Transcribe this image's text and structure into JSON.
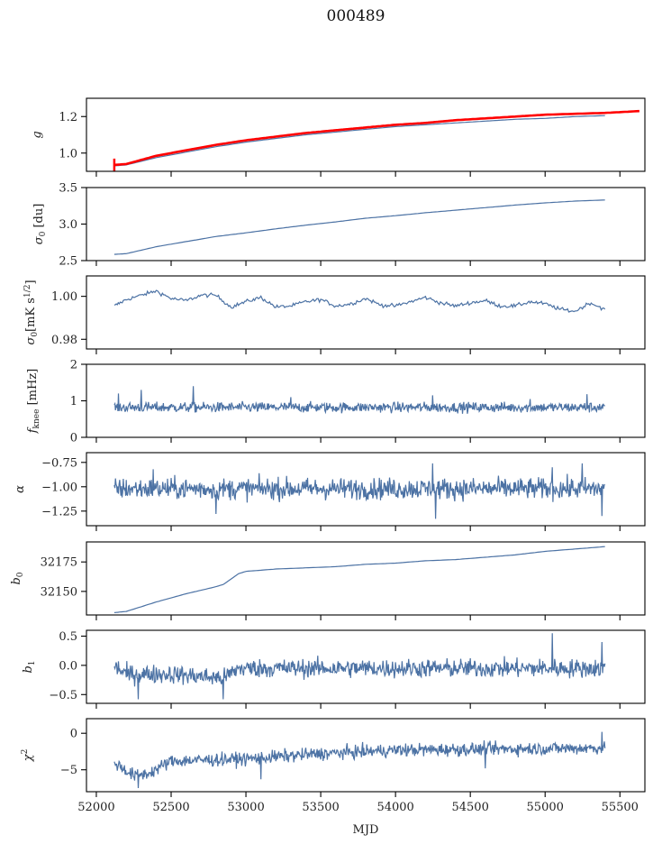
{
  "figure_title": "000489",
  "chart_data": [
    {
      "type": "line",
      "ylabel": "g",
      "ylabel_tex": "g",
      "ylim": [
        0.9,
        1.3
      ],
      "yticks": [
        1.0,
        1.2
      ],
      "ytick_labels": [
        "1.0",
        "1.2"
      ],
      "series": [
        {
          "name": "g",
          "color": "#4c72a4",
          "x": [
            52120,
            52200,
            52400,
            52600,
            52800,
            53000,
            53200,
            53400,
            53600,
            53800,
            54000,
            54200,
            54400,
            54600,
            54800,
            55000,
            55200,
            55400
          ],
          "y": [
            0.93,
            0.935,
            0.975,
            1.005,
            1.035,
            1.06,
            1.08,
            1.1,
            1.115,
            1.13,
            1.145,
            1.155,
            1.165,
            1.175,
            1.185,
            1.19,
            1.2,
            1.205
          ]
        },
        {
          "name": "g (red)",
          "color": "#ff0000",
          "x": [
            52120,
            52200,
            52400,
            52600,
            52800,
            53000,
            53200,
            53400,
            53600,
            53800,
            54000,
            54200,
            54400,
            54600,
            54800,
            55000,
            55200,
            55400,
            55630
          ],
          "y": [
            0.935,
            0.94,
            0.985,
            1.015,
            1.045,
            1.07,
            1.09,
            1.11,
            1.125,
            1.14,
            1.155,
            1.165,
            1.18,
            1.19,
            1.2,
            1.21,
            1.215,
            1.22,
            1.23
          ]
        }
      ]
    },
    {
      "type": "line",
      "ylabel": "σ0 [du]",
      "ylim": [
        2.5,
        3.5
      ],
      "yticks": [
        2.5,
        3.0,
        3.5
      ],
      "ytick_labels": [
        "2.5",
        "3.0",
        "3.5"
      ],
      "series": [
        {
          "name": "sigma0_du",
          "color": "#4c72a4",
          "x": [
            52120,
            52200,
            52400,
            52600,
            52800,
            53000,
            53200,
            53400,
            53600,
            53800,
            54000,
            54200,
            54400,
            54600,
            54800,
            55000,
            55200,
            55400
          ],
          "y": [
            2.585,
            2.595,
            2.69,
            2.76,
            2.83,
            2.88,
            2.935,
            2.985,
            3.03,
            3.08,
            3.115,
            3.155,
            3.19,
            3.225,
            3.26,
            3.29,
            3.315,
            3.33
          ]
        }
      ]
    },
    {
      "type": "line",
      "ylabel": "σ0[mK s^1/2]",
      "ylim": [
        0.9755,
        1.0095
      ],
      "yticks": [
        0.98,
        1.0
      ],
      "ytick_labels": [
        "0.98",
        "1.00"
      ],
      "series": [
        {
          "name": "sigma0_mK",
          "color": "#4c72a4",
          "x": [
            52120,
            52200,
            52300,
            52400,
            52500,
            52600,
            52700,
            52800,
            52900,
            53000,
            53100,
            53200,
            53300,
            53400,
            53500,
            53600,
            53700,
            53800,
            53900,
            54000,
            54100,
            54200,
            54300,
            54400,
            54500,
            54600,
            54700,
            54800,
            54900,
            55000,
            55100,
            55200,
            55300,
            55400
          ],
          "y": [
            0.9955,
            0.9985,
            1.0005,
            1.0025,
            0.999,
            0.998,
            1.0005,
            1.0005,
            0.995,
            0.9975,
            0.9995,
            0.995,
            0.9955,
            0.9975,
            0.9985,
            0.9955,
            0.9965,
            0.999,
            0.996,
            0.9955,
            0.9975,
            0.9995,
            0.997,
            0.9955,
            0.997,
            0.998,
            0.9955,
            0.9955,
            0.9975,
            0.9965,
            0.994,
            0.993,
            0.997,
            0.994
          ]
        }
      ]
    },
    {
      "type": "line",
      "ylabel": "fknee [mHz]",
      "ylim": [
        0,
        2
      ],
      "yticks": [
        0,
        1,
        2
      ],
      "ytick_labels": [
        "0",
        "1",
        "2"
      ],
      "series": [
        {
          "name": "fknee",
          "color": "#4c72a4",
          "noise_mean": 0.82,
          "noise_amp": 0.14,
          "spikes": [
            [
              52150,
              1.2
            ],
            [
              52300,
              1.3
            ],
            [
              52650,
              1.4
            ],
            [
              53300,
              1.1
            ],
            [
              54250,
              1.15
            ],
            [
              54900,
              1.05
            ],
            [
              55280,
              1.18
            ]
          ],
          "x_range": [
            52120,
            55400
          ]
        }
      ]
    },
    {
      "type": "line",
      "ylabel": "α",
      "ylim": [
        -1.4,
        -0.65
      ],
      "yticks": [
        -1.25,
        -1.0,
        -0.75
      ],
      "ytick_labels": [
        "−1.25",
        "−1.00",
        "−0.75"
      ],
      "series": [
        {
          "name": "alpha",
          "color": "#4c72a4",
          "noise_mean": -1.02,
          "noise_amp": 0.11,
          "spikes": [
            [
              52380,
              -0.82
            ],
            [
              52800,
              -1.28
            ],
            [
              54250,
              -0.76
            ],
            [
              54270,
              -1.33
            ],
            [
              55050,
              -0.8
            ],
            [
              55250,
              -0.76
            ],
            [
              55380,
              -1.3
            ]
          ],
          "x_range": [
            52120,
            55400
          ]
        }
      ]
    },
    {
      "type": "line",
      "ylabel": "b0",
      "ylim": [
        32130,
        32192
      ],
      "yticks": [
        32150,
        32175
      ],
      "ytick_labels": [
        "32150",
        "32175"
      ],
      "series": [
        {
          "name": "b0",
          "color": "#4c72a4",
          "x": [
            52120,
            52200,
            52400,
            52600,
            52800,
            52850,
            52950,
            53000,
            53200,
            53400,
            53600,
            53800,
            54000,
            54200,
            54400,
            54600,
            54800,
            55000,
            55200,
            55400
          ],
          "y": [
            32132,
            32133,
            32141,
            32148,
            32154,
            32156,
            32165,
            32167,
            32169,
            32170,
            32171,
            32173,
            32174,
            32176,
            32177,
            32179,
            32181,
            32184,
            32186,
            32188
          ]
        }
      ]
    },
    {
      "type": "line",
      "ylabel": "b1",
      "ylim": [
        -0.65,
        0.6
      ],
      "yticks": [
        -0.5,
        0.0,
        0.5
      ],
      "ytick_labels": [
        "−0.5",
        "0.0",
        "0.5"
      ],
      "series": [
        {
          "name": "b1",
          "color": "#4c72a4",
          "trend": [
            [
              52120,
              0.0
            ],
            [
              52200,
              -0.15
            ],
            [
              52500,
              -0.15
            ],
            [
              52850,
              -0.22
            ],
            [
              52950,
              -0.05
            ],
            [
              55400,
              -0.05
            ]
          ],
          "noise_amp": 0.16,
          "spikes": [
            [
              52280,
              -0.58
            ],
            [
              52850,
              -0.58
            ],
            [
              55050,
              0.55
            ],
            [
              55380,
              0.4
            ]
          ],
          "x_range": [
            52120,
            55400
          ]
        }
      ]
    },
    {
      "type": "line",
      "ylabel": "χ2",
      "ylim": [
        -8,
        2
      ],
      "yticks": [
        -5,
        0
      ],
      "ytick_labels": [
        "−5",
        "0"
      ],
      "series": [
        {
          "name": "chi2",
          "color": "#4c72a4",
          "trend": [
            [
              52120,
              -4.0
            ],
            [
              52250,
              -5.8
            ],
            [
              52350,
              -5.5
            ],
            [
              52500,
              -3.8
            ],
            [
              53000,
              -3.5
            ],
            [
              53500,
              -2.8
            ],
            [
              54000,
              -2.3
            ],
            [
              55400,
              -2.0
            ]
          ],
          "noise_amp": 0.9,
          "spikes": [
            [
              52280,
              -7.5
            ],
            [
              53100,
              -6.3
            ],
            [
              54600,
              -4.8
            ],
            [
              55380,
              0.2
            ]
          ],
          "x_range": [
            52120,
            55400
          ]
        }
      ]
    }
  ],
  "xaxis": {
    "label": "MJD",
    "xlim": [
      51934,
      55667
    ],
    "ticks": [
      52000,
      52500,
      53000,
      53500,
      54000,
      54500,
      55000,
      55500
    ],
    "tick_labels": [
      "52000",
      "52500",
      "53000",
      "53500",
      "54000",
      "54500",
      "55000",
      "55500"
    ]
  }
}
